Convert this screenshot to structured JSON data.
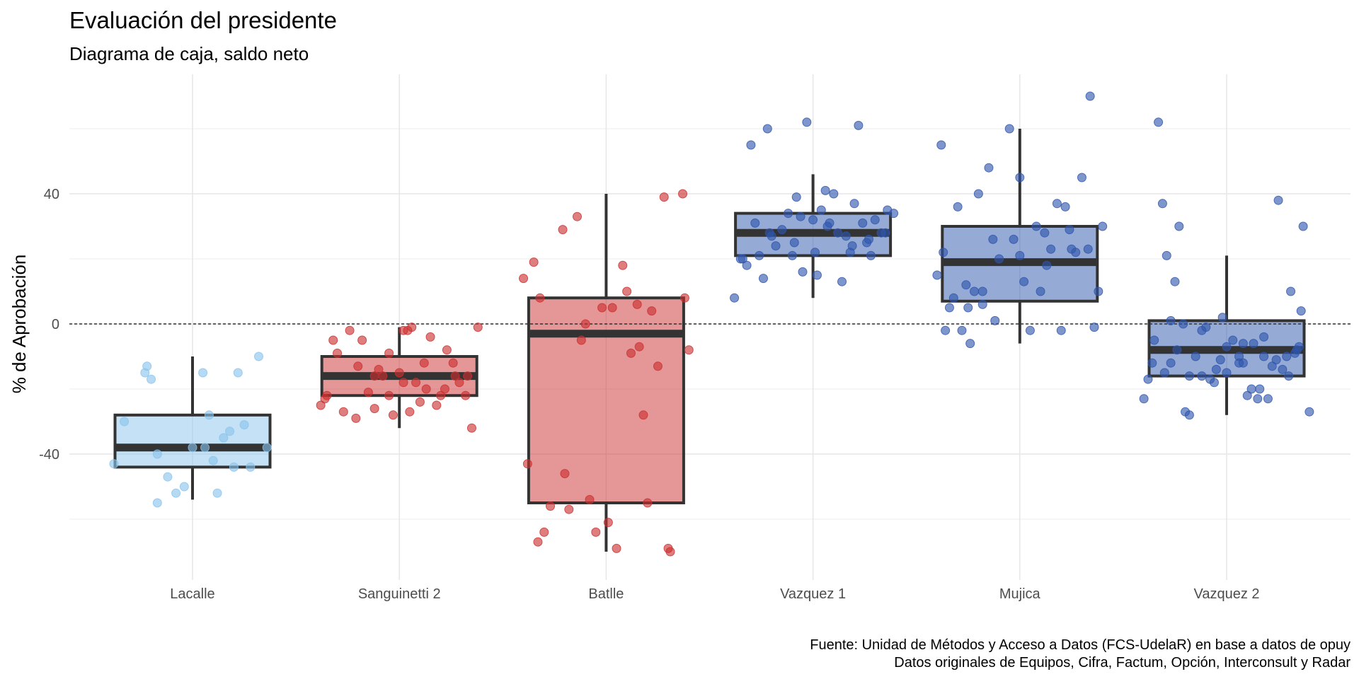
{
  "chart_data": {
    "type": "box",
    "title": "Evaluación del presidente",
    "subtitle": "Diagrama de caja, saldo neto",
    "xlabel": "",
    "ylabel": "% de Aprobación",
    "ylim": [
      -72,
      72
    ],
    "yticks": [
      -40,
      0,
      40
    ],
    "ytick_labels": [
      "-40",
      "0",
      "40"
    ],
    "grid": true,
    "reference_line": {
      "y": 0,
      "style": "dashed"
    },
    "caption": [
      "Fuente: Unidad de Métodos y Acceso a Datos (FCS-UdelaR) en base a datos de opuy",
      "Datos originales de Equipos, Cifra, Factum, Opción, Interconsult y Radar"
    ],
    "categories": [
      "Lacalle",
      "Sanguinetti 2",
      "Batlle",
      "Vazquez 1",
      "Mujica",
      "Vazquez 2"
    ],
    "colors": {
      "Lacalle": "#89c4ec",
      "Sanguinetti 2": "#cc2f2f",
      "Batlle": "#cc2f2f",
      "Vazquez 1": "#2e55ad",
      "Mujica": "#2e55ad",
      "Vazquez 2": "#2e55ad"
    },
    "boxes": [
      {
        "category": "Lacalle",
        "min": -54,
        "q1": -44,
        "median": -38,
        "q3": -28,
        "max": -10
      },
      {
        "category": "Sanguinetti 2",
        "min": -32,
        "q1": -22,
        "median": -16,
        "q3": -10,
        "max": -1
      },
      {
        "category": "Batlle",
        "min": -70,
        "q1": -55,
        "median": -3,
        "q3": 8,
        "max": 40
      },
      {
        "category": "Vazquez 1",
        "min": 8,
        "q1": 21,
        "median": 28,
        "q3": 34,
        "max": 46
      },
      {
        "category": "Mujica",
        "min": -6,
        "q1": 7,
        "median": 19,
        "q3": 30,
        "max": 60
      },
      {
        "category": "Vazquez 2",
        "min": -28,
        "q1": -16,
        "median": -8,
        "q3": 1,
        "max": 21
      }
    ],
    "points": [
      {
        "category": "Lacalle",
        "jitter": [
          -0.38,
          -0.33,
          -0.22,
          -0.23,
          -0.2,
          -0.17,
          -0.17,
          -0.12,
          -0.08,
          -0.04,
          0.0,
          0.05,
          0.08,
          0.12,
          0.15,
          0.18,
          0.2,
          0.22,
          0.25,
          0.28,
          0.32,
          0.36,
          0.06,
          0.1
        ],
        "y": [
          -43,
          -30,
          -13,
          -15,
          -17,
          -55,
          -40,
          -47,
          -52,
          -50,
          -38,
          -15,
          -28,
          -52,
          -35,
          -33,
          -44,
          -15,
          -31,
          -44,
          -10,
          -38,
          -38,
          -42
        ]
      },
      {
        "category": "Sanguinetti 2",
        "jitter": [
          -0.38,
          -0.35,
          -0.32,
          -0.3,
          -0.27,
          -0.24,
          -0.21,
          -0.18,
          -0.15,
          -0.12,
          -0.1,
          -0.08,
          -0.05,
          -0.03,
          0.0,
          0.02,
          0.04,
          0.06,
          0.08,
          0.1,
          0.13,
          0.15,
          0.18,
          0.2,
          0.23,
          0.26,
          0.29,
          0.32,
          0.35,
          0.38,
          -0.2,
          -0.05,
          0.12,
          0.27,
          -0.36,
          -0.12,
          0.05,
          0.22,
          0.33,
          0.02
        ],
        "y": [
          -25,
          -22,
          -5,
          -9,
          -27,
          -2,
          -29,
          -5,
          -21,
          -26,
          -14,
          -16,
          -22,
          -28,
          -15,
          -2,
          -2,
          -1,
          -18,
          -24,
          -20,
          -4,
          -25,
          -22,
          -8,
          -12,
          -18,
          -22,
          -32,
          -1,
          -13,
          -9,
          -12,
          -16,
          -23,
          -16,
          -27,
          -20,
          -16,
          -18
        ]
      },
      {
        "category": "Batlle",
        "jitter": [
          -0.4,
          -0.38,
          -0.35,
          -0.33,
          -0.32,
          -0.3,
          -0.21,
          -0.2,
          -0.18,
          -0.12,
          -0.1,
          -0.08,
          -0.05,
          -0.02,
          0.01,
          0.05,
          0.08,
          0.1,
          0.12,
          0.15,
          0.16,
          0.18,
          0.2,
          0.22,
          0.25,
          0.28,
          0.31,
          0.38,
          0.4,
          -0.27,
          -0.14,
          0.03,
          0.3,
          0.37
        ],
        "y": [
          14,
          -43,
          19,
          -67,
          8,
          -64,
          29,
          -46,
          -57,
          -5,
          0,
          -54,
          -64,
          5,
          -61,
          -69,
          18,
          10,
          -9,
          6,
          -7,
          -28,
          -55,
          4,
          -13,
          39,
          -70,
          8,
          -8,
          -56,
          33,
          5,
          -69,
          40
        ]
      },
      {
        "category": "Vazquez 1",
        "jitter": [
          -0.38,
          -0.35,
          -0.32,
          -0.3,
          -0.28,
          -0.26,
          -0.24,
          -0.22,
          -0.2,
          -0.18,
          -0.15,
          -0.12,
          -0.1,
          -0.08,
          -0.05,
          -0.03,
          0.0,
          0.02,
          0.04,
          0.06,
          0.08,
          0.1,
          0.12,
          0.14,
          0.16,
          0.18,
          0.2,
          0.22,
          0.24,
          0.26,
          0.28,
          0.3,
          0.33,
          0.36,
          0.39,
          -0.34,
          -0.21,
          -0.09,
          0.07,
          0.19,
          0.27,
          0.35,
          -0.06,
          0.01
        ],
        "y": [
          8,
          20,
          18,
          55,
          31,
          21,
          14,
          60,
          27,
          24,
          29,
          34,
          21,
          39,
          16,
          62,
          32,
          15,
          35,
          41,
          31,
          40,
          28,
          13,
          27,
          22,
          37,
          61,
          31,
          25,
          21,
          32,
          28,
          35,
          34,
          20,
          28,
          25,
          30,
          24,
          26,
          28,
          33,
          22
        ]
      },
      {
        "category": "Mujica",
        "jitter": [
          -0.4,
          -0.38,
          -0.36,
          -0.34,
          -0.32,
          -0.3,
          -0.28,
          -0.26,
          -0.24,
          -0.22,
          -0.2,
          -0.18,
          -0.15,
          -0.12,
          -0.1,
          -0.05,
          -0.03,
          0.0,
          0.02,
          0.05,
          0.08,
          0.1,
          0.12,
          0.15,
          0.18,
          0.2,
          0.22,
          0.25,
          0.27,
          0.3,
          0.33,
          0.36,
          0.38,
          0.4,
          -0.37,
          -0.25,
          -0.13,
          0.0,
          0.13,
          0.24,
          0.34,
          -0.18
        ],
        "y": [
          15,
          55,
          -2,
          5,
          8,
          36,
          -2,
          12,
          -6,
          10,
          40,
          10,
          48,
          1,
          20,
          60,
          26,
          45,
          13,
          -2,
          30,
          10,
          28,
          23,
          37,
          -2,
          36,
          23,
          22,
          45,
          23,
          -1,
          10,
          30,
          22,
          5,
          26,
          21,
          18,
          29,
          70,
          6
        ]
      },
      {
        "category": "Vazquez 2",
        "jitter": [
          -0.4,
          -0.38,
          -0.35,
          -0.33,
          -0.31,
          -0.29,
          -0.27,
          -0.25,
          -0.23,
          -0.2,
          -0.18,
          -0.15,
          -0.12,
          -0.1,
          -0.08,
          -0.05,
          -0.02,
          0.0,
          0.03,
          0.06,
          0.08,
          0.1,
          0.13,
          0.15,
          0.18,
          0.2,
          0.22,
          0.25,
          0.27,
          0.29,
          0.31,
          0.33,
          0.35,
          0.37,
          0.4,
          -0.36,
          -0.3,
          -0.24,
          -0.18,
          -0.12,
          -0.06,
          0.0,
          0.06,
          0.12,
          0.18,
          0.24,
          0.3,
          0.36,
          -0.21,
          -0.03,
          0.16,
          0.34,
          -0.27,
          0.08
        ],
        "y": [
          -23,
          -17,
          -5,
          62,
          37,
          21,
          -12,
          13,
          30,
          -27,
          -28,
          -10,
          -16,
          -1,
          -17,
          -14,
          2,
          -15,
          -5,
          -10,
          -12,
          -22,
          -6,
          -23,
          -10,
          -23,
          -13,
          38,
          -14,
          -10,
          10,
          -9,
          -7,
          30,
          -27,
          -12,
          -15,
          -8,
          -16,
          -2,
          -18,
          -7,
          -12,
          -20,
          -4,
          -11,
          -16,
          4,
          0,
          -11,
          -20,
          -8,
          1,
          -6
        ]
      }
    ]
  }
}
